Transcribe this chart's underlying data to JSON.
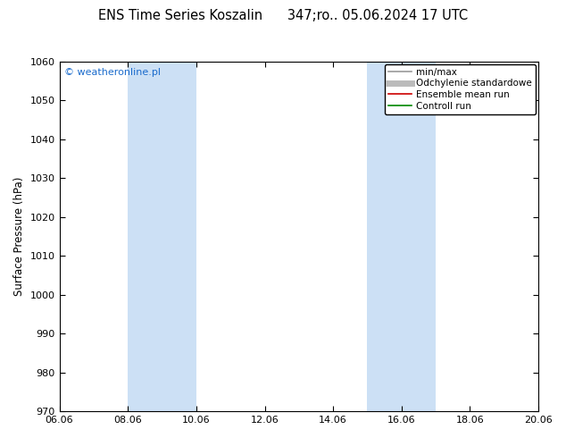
{
  "title": "ENS Time Series Koszalin      347;ro.. 05.06.2024 17 UTC",
  "ylabel": "Surface Pressure (hPa)",
  "ylim": [
    970,
    1060
  ],
  "yticks": [
    970,
    980,
    990,
    1000,
    1010,
    1020,
    1030,
    1040,
    1050,
    1060
  ],
  "xtick_labels": [
    "06.06",
    "08.06",
    "10.06",
    "12.06",
    "14.06",
    "16.06",
    "18.06",
    "20.06"
  ],
  "xtick_positions": [
    0,
    2,
    4,
    6,
    8,
    10,
    12,
    14
  ],
  "xlim": [
    0,
    14
  ],
  "shade_bands": [
    {
      "x_start": 2,
      "x_end": 4,
      "color": "#cce0f5"
    },
    {
      "x_start": 9,
      "x_end": 11,
      "color": "#cce0f5"
    }
  ],
  "watermark_text": "© weatheronline.pl",
  "watermark_color": "#1a6bcc",
  "bg_color": "#ffffff",
  "plot_bg_color": "#ffffff",
  "border_color": "#000000",
  "title_fontsize": 10.5,
  "label_fontsize": 8.5,
  "tick_fontsize": 8,
  "legend_fontsize": 7.5,
  "legend_items": [
    {
      "label": "min/max",
      "color": "#999999",
      "lw": 1.2
    },
    {
      "label": "Odchylenie standardowe",
      "color": "#bbbbbb",
      "lw": 5
    },
    {
      "label": "Ensemble mean run",
      "color": "#cc0000",
      "lw": 1.2
    },
    {
      "label": "Controll run",
      "color": "#008800",
      "lw": 1.2
    }
  ]
}
